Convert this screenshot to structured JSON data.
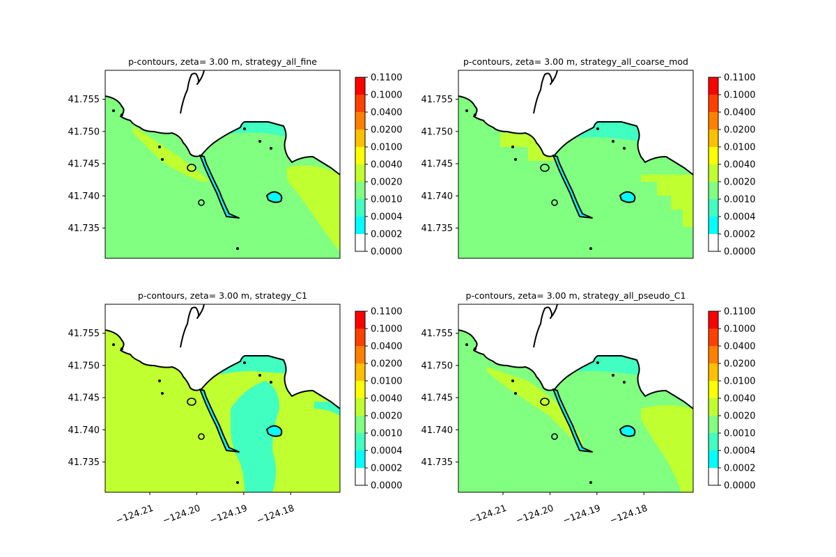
{
  "chart_data": [
    {
      "type": "heatmap",
      "title": "p-contours, zeta= 3.00 m, strategy_all_fine",
      "yticks": [
        "41.755",
        "41.750",
        "41.745",
        "41.740",
        "41.735"
      ],
      "ytick_values": [
        41.755,
        41.75,
        41.745,
        41.74,
        41.735
      ],
      "xticks": [],
      "xlim": [
        -124.2195,
        -124.1695
      ],
      "ylim": [
        41.7303,
        41.7595
      ],
      "colorbar": {
        "levels": [
          "0.0000",
          "0.0002",
          "0.0004",
          "0.0010",
          "0.0020",
          "0.0040",
          "0.0100",
          "0.0200",
          "0.0400",
          "0.1000",
          "0.1100"
        ]
      },
      "regions": {
        "background": "0.0010-0.0020",
        "offshore_zone": "0.0002-0.0004",
        "nearshore_band": "0.0004-0.0010",
        "shelf_bands": "0.0020-0.0040"
      }
    },
    {
      "type": "heatmap",
      "title": "p-contours, zeta= 3.00 m, strategy_all_coarse_mod",
      "yticks": [
        "41.755",
        "41.750",
        "41.745",
        "41.740",
        "41.735"
      ],
      "ytick_values": [
        41.755,
        41.75,
        41.745,
        41.74,
        41.735
      ],
      "xticks": [],
      "xlim": [
        -124.2195,
        -124.1695
      ],
      "ylim": [
        41.7303,
        41.7595
      ],
      "colorbar": {
        "levels": [
          "0.0000",
          "0.0002",
          "0.0004",
          "0.0010",
          "0.0020",
          "0.0040",
          "0.0100",
          "0.0200",
          "0.0400",
          "0.1000",
          "0.1100"
        ]
      },
      "regions": {
        "background": "0.0010-0.0020",
        "offshore_zone": "0.0002-0.0004",
        "nearshore_band": "0.0004-0.0010",
        "shelf_bands": "0.0020-0.0040"
      }
    },
    {
      "type": "heatmap",
      "title": "p-contours, zeta= 3.00 m, strategy_C1",
      "yticks": [
        "41.755",
        "41.750",
        "41.745",
        "41.740",
        "41.735"
      ],
      "ytick_values": [
        41.755,
        41.75,
        41.745,
        41.74,
        41.735
      ],
      "xticks": [
        "−124.21",
        "−124.20",
        "−124.19",
        "−124.18"
      ],
      "xtick_values": [
        -124.21,
        -124.2,
        -124.19,
        -124.18
      ],
      "xlim": [
        -124.2195,
        -124.1695
      ],
      "ylim": [
        41.7303,
        41.7595
      ],
      "colorbar": {
        "levels": [
          "0.0000",
          "0.0002",
          "0.0004",
          "0.0010",
          "0.0020",
          "0.0040",
          "0.0100",
          "0.0200",
          "0.0400",
          "0.1000",
          "0.1100"
        ]
      },
      "regions": {
        "background": "0.0020-0.0040",
        "offshore_zone": "0.0004-0.0010",
        "channel": "0.0004-0.0010"
      }
    },
    {
      "type": "heatmap",
      "title": "p-contours, zeta= 3.00 m, strategy_all_pseudo_C1",
      "yticks": [
        "41.755",
        "41.750",
        "41.745",
        "41.740",
        "41.735"
      ],
      "ytick_values": [
        41.755,
        41.75,
        41.745,
        41.74,
        41.735
      ],
      "xticks": [
        "−124.21",
        "−124.20",
        "−124.19",
        "−124.18"
      ],
      "xtick_values": [
        -124.21,
        -124.2,
        -124.19,
        -124.18
      ],
      "xlim": [
        -124.2195,
        -124.1695
      ],
      "ylim": [
        41.7303,
        41.7595
      ],
      "colorbar": {
        "levels": [
          "0.0000",
          "0.0002",
          "0.0004",
          "0.0010",
          "0.0020",
          "0.0040",
          "0.0100",
          "0.0200",
          "0.0400",
          "0.1000",
          "0.1100"
        ]
      },
      "regions": {
        "background": "0.0010-0.0020",
        "offshore_zone": "0.0002-0.0004",
        "nearshore_band": "0.0004-0.0010",
        "shelf_bands": "0.0020-0.0040"
      }
    }
  ],
  "colors": {
    "levels": [
      "#ffffff",
      "#00ffff",
      "#40ffc0",
      "#80ff80",
      "#c0ff30",
      "#ffff00",
      "#ffc000",
      "#ff8000",
      "#ff4000",
      "#ff0000"
    ],
    "land": "#ffffff",
    "coast": "#000000"
  }
}
